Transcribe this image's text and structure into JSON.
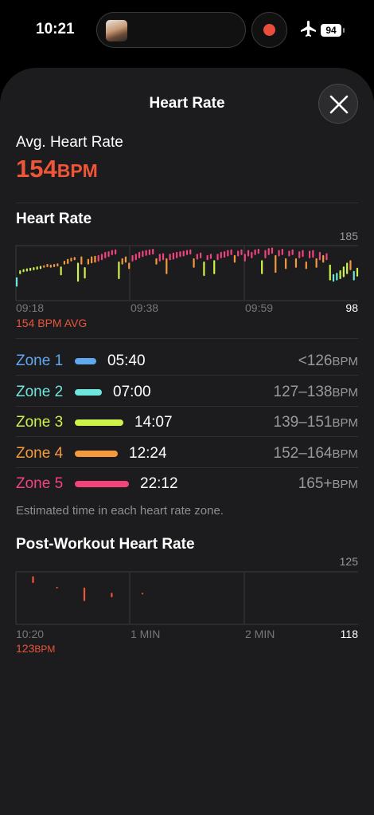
{
  "status_bar": {
    "time": "10:21",
    "battery": "94"
  },
  "sheet": {
    "title": "Heart Rate"
  },
  "avg_heart_rate": {
    "label": "Avg. Heart Rate",
    "value": "154",
    "unit": "BPM"
  },
  "heart_rate_section": {
    "title": "Heart Rate",
    "max_label": "185",
    "min_label": "98",
    "x_ticks": [
      "09:18",
      "09:38",
      "09:59"
    ],
    "avg_caption": "154 BPM AVG"
  },
  "zones": [
    {
      "label": "Zone 1",
      "time": "05:40",
      "range": "<126",
      "unit": "BPM",
      "color": "#5fa9f0",
      "fraction": 0.4
    },
    {
      "label": "Zone 2",
      "time": "07:00",
      "range": "127–138",
      "unit": "BPM",
      "color": "#6ee6dd",
      "fraction": 0.5
    },
    {
      "label": "Zone 3",
      "time": "14:07",
      "range": "139–151",
      "unit": "BPM",
      "color": "#cdf24a",
      "fraction": 0.9
    },
    {
      "label": "Zone 4",
      "time": "12:24",
      "range": "152–164",
      "unit": "BPM",
      "color": "#f59a3c",
      "fraction": 0.8
    },
    {
      "label": "Zone 5",
      "time": "22:12",
      "range": "165+",
      "unit": "BPM",
      "color": "#f0447a",
      "fraction": 1.0
    }
  ],
  "zones_note": "Estimated time in each heart rate zone.",
  "post_workout": {
    "title": "Post-Workout Heart Rate",
    "max_label": "125",
    "min_label": "118",
    "x_ticks": [
      "10:20",
      "1 MIN",
      "2 MIN"
    ],
    "caption_value": "123",
    "caption_unit": "BPM"
  },
  "chart_data": [
    {
      "type": "bar",
      "description_series": "Heart Rate",
      "ylim": [
        98,
        185
      ],
      "x_ticks": [
        "09:18",
        "09:38",
        "09:59"
      ],
      "avg": 154,
      "values": [
        [
          120,
          135
        ],
        [
          140,
          146
        ],
        [
          143,
          148
        ],
        [
          144,
          149
        ],
        [
          145,
          150
        ],
        [
          146,
          151
        ],
        [
          147,
          152
        ],
        [
          148,
          153
        ],
        [
          150,
          154
        ],
        [
          151,
          156
        ],
        [
          150,
          155
        ],
        [
          151,
          156
        ],
        [
          152,
          157
        ],
        [
          138,
          152
        ],
        [
          155,
          161
        ],
        [
          156,
          164
        ],
        [
          160,
          166
        ],
        [
          162,
          167
        ],
        [
          128,
          158
        ],
        [
          155,
          168
        ],
        [
          133,
          151
        ],
        [
          155,
          164
        ],
        [
          157,
          168
        ],
        [
          158,
          169
        ],
        [
          160,
          170
        ],
        [
          162,
          172
        ],
        [
          165,
          175
        ],
        [
          167,
          176
        ],
        [
          170,
          178
        ],
        [
          171,
          179
        ],
        [
          132,
          160
        ],
        [
          155,
          165
        ],
        [
          158,
          168
        ],
        [
          148,
          158
        ],
        [
          160,
          170
        ],
        [
          162,
          172
        ],
        [
          165,
          175
        ],
        [
          167,
          177
        ],
        [
          169,
          178
        ],
        [
          170,
          179
        ],
        [
          171,
          180
        ],
        [
          155,
          165
        ],
        [
          160,
          172
        ],
        [
          162,
          173
        ],
        [
          140,
          165
        ],
        [
          162,
          172
        ],
        [
          163,
          174
        ],
        [
          165,
          175
        ],
        [
          167,
          176
        ],
        [
          168,
          177
        ],
        [
          170,
          178
        ],
        [
          171,
          179
        ],
        [
          150,
          165
        ],
        [
          163,
          172
        ],
        [
          165,
          174
        ],
        [
          137,
          160
        ],
        [
          162,
          170
        ],
        [
          164,
          172
        ],
        [
          140,
          162
        ],
        [
          162,
          172
        ],
        [
          165,
          175
        ],
        [
          166,
          176
        ],
        [
          168,
          178
        ],
        [
          170,
          179
        ],
        [
          158,
          170
        ],
        [
          168,
          177
        ],
        [
          170,
          179
        ],
        [
          160,
          172
        ],
        [
          168,
          178
        ],
        [
          165,
          175
        ],
        [
          170,
          179
        ],
        [
          172,
          180
        ],
        [
          140,
          162
        ],
        [
          165,
          178
        ],
        [
          170,
          181
        ],
        [
          172,
          182
        ],
        [
          142,
          170
        ],
        [
          168,
          178
        ],
        [
          170,
          180
        ],
        [
          148,
          165
        ],
        [
          168,
          177
        ],
        [
          170,
          179
        ],
        [
          150,
          165
        ],
        [
          165,
          176
        ],
        [
          167,
          178
        ],
        [
          148,
          160
        ],
        [
          165,
          177
        ],
        [
          166,
          178
        ],
        [
          150,
          165
        ],
        [
          162,
          175
        ],
        [
          158,
          170
        ],
        [
          162,
          173
        ],
        [
          130,
          155
        ],
        [
          128,
          140
        ],
        [
          130,
          142
        ],
        [
          132,
          146
        ],
        [
          135,
          152
        ],
        [
          140,
          158
        ],
        [
          146,
          162
        ],
        [
          130,
          145
        ],
        [
          136,
          150
        ]
      ]
    },
    {
      "type": "bar",
      "description_series": "Post-Workout Heart Rate",
      "ylim": [
        118,
        125
      ],
      "x_ticks": [
        "10:20",
        "1 MIN",
        "2 MIN"
      ],
      "values": [
        [
          0.05,
          123.5,
          124.4
        ],
        [
          0.12,
          122.9,
          123.0
        ],
        [
          0.2,
          121.1,
          122.9
        ],
        [
          0.28,
          121.6,
          122.2
        ],
        [
          0.37,
          122.0,
          122.2
        ]
      ]
    }
  ]
}
